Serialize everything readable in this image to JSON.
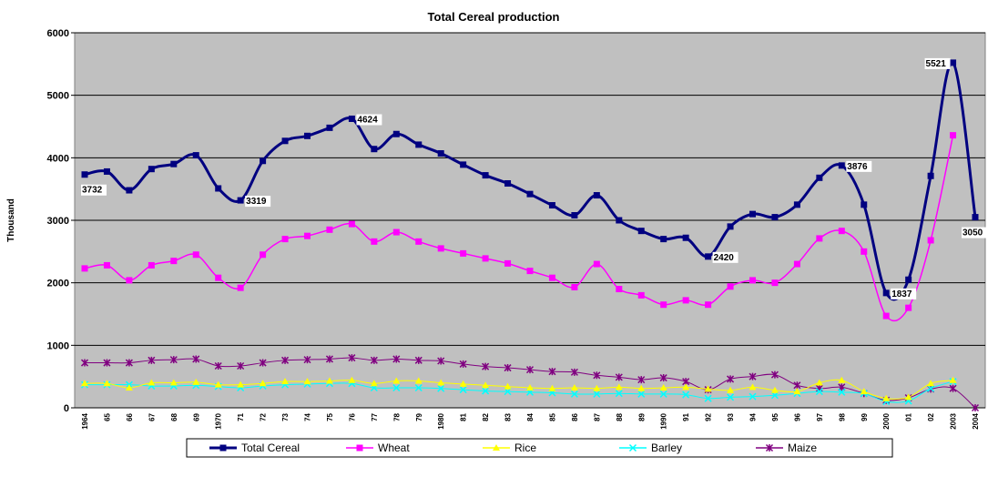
{
  "chart_data": {
    "type": "line",
    "title": "Total Cereal production",
    "y_label": "Thousand",
    "categories": [
      "1964",
      "65",
      "66",
      "67",
      "68",
      "69",
      "1970",
      "71",
      "72",
      "73",
      "74",
      "75",
      "76",
      "77",
      "78",
      "79",
      "1980",
      "81",
      "82",
      "83",
      "84",
      "85",
      "86",
      "87",
      "88",
      "89",
      "1990",
      "91",
      "92",
      "93",
      "94",
      "95",
      "96",
      "97",
      "98",
      "99",
      "2000",
      "01",
      "02",
      "2003",
      "2004"
    ],
    "ylim": [
      0,
      6000
    ],
    "yticks": [
      0,
      1000,
      2000,
      3000,
      4000,
      5000,
      6000
    ],
    "grid": true,
    "legend": "bottom",
    "smooth": true,
    "series": [
      {
        "name": "Total Cereal",
        "color": "#000080",
        "marker": "square",
        "values": [
          3732,
          3780,
          3480,
          3820,
          3900,
          4040,
          3510,
          3319,
          3950,
          4270,
          4350,
          4480,
          4624,
          4140,
          4380,
          4210,
          4070,
          3890,
          3720,
          3590,
          3420,
          3240,
          3080,
          3400,
          3000,
          2830,
          2700,
          2720,
          2420,
          2900,
          3100,
          3050,
          3250,
          3680,
          3876,
          3250,
          1837,
          2050,
          3710,
          5521,
          3050
        ],
        "value_labels": [
          3732,
          null,
          null,
          null,
          null,
          null,
          null,
          3319,
          null,
          null,
          null,
          null,
          4624,
          null,
          null,
          null,
          null,
          null,
          null,
          null,
          null,
          null,
          null,
          null,
          null,
          null,
          null,
          null,
          2420,
          null,
          null,
          null,
          null,
          null,
          3876,
          null,
          1837,
          null,
          null,
          5521,
          3050
        ]
      },
      {
        "name": "Wheat",
        "color": "#ff00ff",
        "marker": "square",
        "values": [
          2230,
          2280,
          2040,
          2280,
          2350,
          2450,
          2080,
          1920,
          2450,
          2700,
          2750,
          2850,
          2940,
          2660,
          2810,
          2660,
          2550,
          2470,
          2390,
          2310,
          2190,
          2080,
          1930,
          2300,
          1900,
          1800,
          1650,
          1720,
          1650,
          1940,
          2040,
          2000,
          2300,
          2710,
          2830,
          2500,
          1470,
          1600,
          2680,
          4360,
          null
        ]
      },
      {
        "name": "Rice",
        "color": "#ffff00",
        "marker": "triangle",
        "values": [
          390,
          390,
          320,
          400,
          400,
          410,
          370,
          370,
          390,
          420,
          420,
          430,
          440,
          390,
          430,
          430,
          400,
          380,
          360,
          340,
          320,
          310,
          320,
          310,
          330,
          310,
          320,
          330,
          300,
          280,
          330,
          280,
          260,
          400,
          440,
          260,
          150,
          170,
          390,
          440,
          null
        ]
      },
      {
        "name": "Barley",
        "color": "#00ffff",
        "marker": "x",
        "values": [
          370,
          370,
          370,
          350,
          350,
          360,
          340,
          320,
          350,
          370,
          380,
          390,
          390,
          320,
          320,
          320,
          310,
          290,
          270,
          260,
          250,
          240,
          220,
          220,
          230,
          220,
          220,
          210,
          150,
          170,
          180,
          200,
          230,
          260,
          250,
          230,
          100,
          110,
          310,
          420,
          null
        ]
      },
      {
        "name": "Maize",
        "color": "#800080",
        "marker": "star",
        "values": [
          720,
          720,
          720,
          760,
          770,
          780,
          670,
          670,
          720,
          760,
          770,
          780,
          800,
          760,
          780,
          760,
          750,
          700,
          660,
          640,
          610,
          580,
          570,
          520,
          490,
          450,
          480,
          420,
          290,
          460,
          500,
          530,
          360,
          310,
          330,
          230,
          120,
          160,
          300,
          310,
          0
        ]
      }
    ]
  }
}
